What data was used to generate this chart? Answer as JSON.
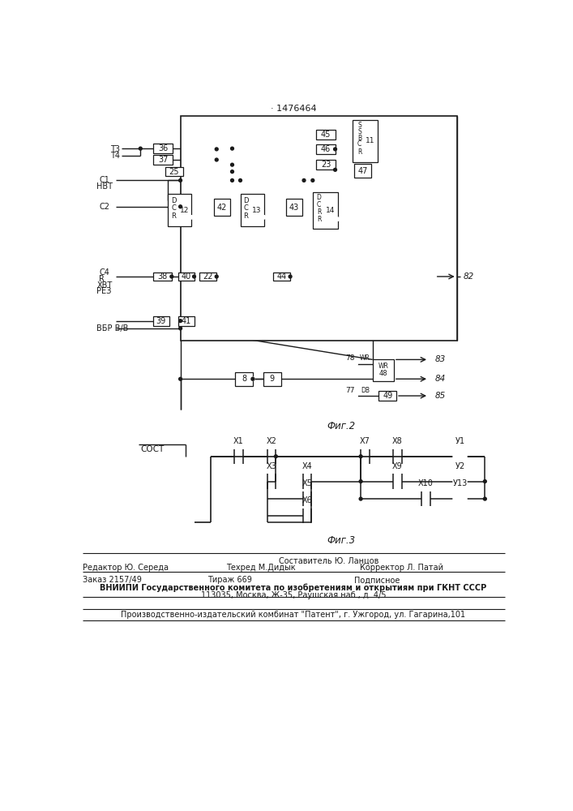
{
  "title": "· 1476464",
  "bg_color": "#ffffff",
  "line_color": "#1a1a1a",
  "fig2_label": "Фиг.2",
  "fig3_label": "Фиг.3"
}
